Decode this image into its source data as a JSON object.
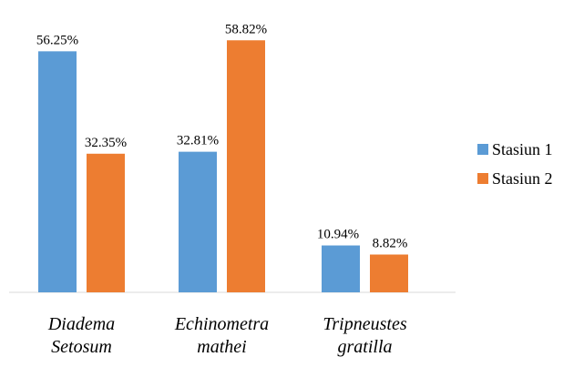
{
  "chart_data": {
    "type": "bar",
    "categories": [
      [
        "Diadema",
        "Setosum"
      ],
      [
        "Echinometra",
        "mathei"
      ],
      [
        "Tripneustes",
        "gratilla"
      ]
    ],
    "series": [
      {
        "name": "Stasiun 1",
        "color": "#5B9BD5",
        "values": [
          56.25,
          32.81,
          10.94
        ],
        "labels": [
          "56.25%",
          "32.81%",
          "10.94%"
        ]
      },
      {
        "name": "Stasiun 2",
        "color": "#ED7D31",
        "values": [
          32.35,
          58.82,
          8.82
        ],
        "labels": [
          "32.35%",
          "58.82%",
          "8.82%"
        ]
      }
    ],
    "ylim": [
      0,
      60
    ],
    "title": "",
    "xlabel": "",
    "ylabel": "",
    "grid": false,
    "legend_position": "right"
  }
}
